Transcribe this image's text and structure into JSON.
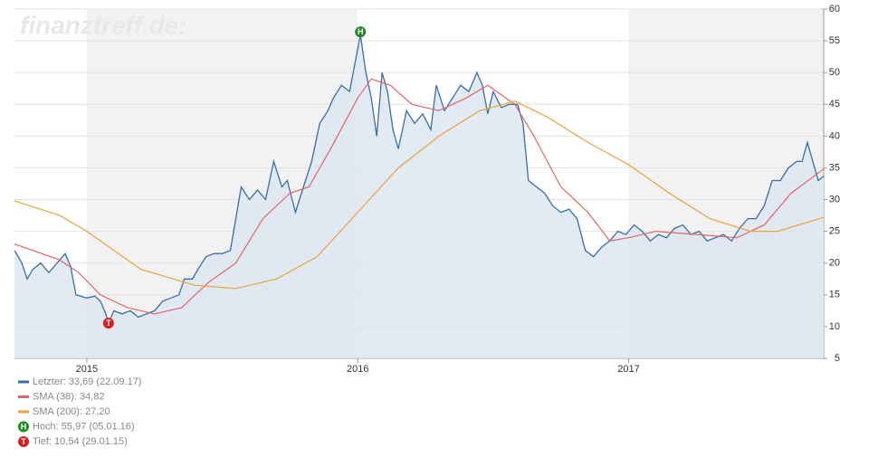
{
  "chart_data": {
    "type": "line",
    "watermark": "finanztreff.de:",
    "xlim": [
      2014.733,
      2017.72
    ],
    "xticks": [
      2015,
      2016,
      2017
    ],
    "ylim": [
      5,
      60
    ],
    "yticks": [
      5,
      10,
      15,
      20,
      25,
      30,
      35,
      40,
      45,
      50,
      55,
      60
    ],
    "grid": true,
    "series": [
      {
        "name": "Letzter: 33,69 (22.09.17)",
        "color": "#3a6ea5",
        "fill": "#dbe5f1",
        "x": [
          2014.733,
          2014.76,
          2014.78,
          2014.8,
          2014.83,
          2014.86,
          2014.89,
          2014.92,
          2014.94,
          2014.96,
          2015.0,
          2015.03,
          2015.05,
          2015.07,
          2015.08,
          2015.1,
          2015.13,
          2015.16,
          2015.19,
          2015.22,
          2015.25,
          2015.28,
          2015.31,
          2015.34,
          2015.36,
          2015.39,
          2015.41,
          2015.44,
          2015.47,
          2015.5,
          2015.53,
          2015.55,
          2015.57,
          2015.6,
          2015.63,
          2015.66,
          2015.69,
          2015.72,
          2015.74,
          2015.77,
          2015.8,
          2015.83,
          2015.86,
          2015.89,
          2015.91,
          2015.94,
          2015.97,
          2016.01,
          2016.03,
          2016.05,
          2016.07,
          2016.09,
          2016.11,
          2016.13,
          2016.15,
          2016.18,
          2016.21,
          2016.24,
          2016.27,
          2016.29,
          2016.32,
          2016.35,
          2016.38,
          2016.41,
          2016.44,
          2016.46,
          2016.48,
          2016.5,
          2016.53,
          2016.56,
          2016.59,
          2016.61,
          2016.63,
          2016.66,
          2016.69,
          2016.72,
          2016.75,
          2016.78,
          2016.81,
          2016.84,
          2016.87,
          2016.9,
          2016.93,
          2016.96,
          2016.99,
          2017.02,
          2017.05,
          2017.08,
          2017.11,
          2017.14,
          2017.17,
          2017.2,
          2017.23,
          2017.26,
          2017.29,
          2017.32,
          2017.35,
          2017.38,
          2017.41,
          2017.44,
          2017.47,
          2017.5,
          2017.53,
          2017.56,
          2017.59,
          2017.62,
          2017.64,
          2017.66,
          2017.68,
          2017.7,
          2017.72
        ],
        "values": [
          22,
          20,
          17.5,
          19,
          20,
          18.5,
          20,
          21.5,
          19.5,
          15,
          14.5,
          14.8,
          14,
          12,
          10.54,
          12.5,
          12,
          12.5,
          11.5,
          12,
          12.5,
          14,
          14.5,
          15,
          17.5,
          17.5,
          19,
          21,
          21.5,
          21.5,
          22,
          27,
          32,
          30,
          31.5,
          30,
          36,
          32,
          33,
          28,
          32,
          36,
          42,
          44,
          46,
          48,
          47,
          55.97,
          50,
          46,
          40,
          50,
          47,
          41,
          38,
          44,
          42,
          43.5,
          41,
          48,
          44,
          46,
          48,
          47,
          50,
          48,
          43.5,
          47,
          44.5,
          45,
          45,
          42,
          33,
          32,
          31,
          29,
          28,
          28.5,
          27,
          22,
          21,
          22.5,
          23.5,
          25,
          24.5,
          26,
          25,
          23.5,
          24.5,
          24,
          25.5,
          26,
          24.5,
          25,
          23.5,
          24,
          24.5,
          23.5,
          25.5,
          27,
          27,
          29,
          33,
          33,
          35,
          36,
          36,
          39,
          36,
          33,
          33.69
        ]
      },
      {
        "name": "SMA (38): 34,82",
        "color": "#e06666",
        "x": [
          2014.733,
          2014.8,
          2014.9,
          2014.97,
          2015.05,
          2015.15,
          2015.25,
          2015.35,
          2015.45,
          2015.55,
          2015.65,
          2015.75,
          2015.82,
          2015.9,
          2016.0,
          2016.05,
          2016.12,
          2016.2,
          2016.3,
          2016.4,
          2016.48,
          2016.58,
          2016.65,
          2016.75,
          2016.85,
          2016.93,
          2017.0,
          2017.1,
          2017.25,
          2017.4,
          2017.5,
          2017.6,
          2017.72
        ],
        "values": [
          23,
          22,
          20.5,
          18.5,
          15,
          13,
          12,
          13,
          17,
          20,
          27,
          31,
          32,
          38,
          46,
          49,
          48,
          45,
          44,
          46,
          48,
          45,
          40,
          32,
          28,
          23.5,
          24,
          25,
          24.5,
          24,
          26,
          31,
          34.82
        ]
      },
      {
        "name": "SMA (200): 27,20",
        "color": "#e8a33d",
        "x": [
          2014.733,
          2014.9,
          2015.0,
          2015.2,
          2015.4,
          2015.55,
          2015.7,
          2015.85,
          2016.0,
          2016.15,
          2016.3,
          2016.45,
          2016.58,
          2016.7,
          2016.85,
          2017.0,
          2017.15,
          2017.3,
          2017.45,
          2017.55,
          2017.72
        ],
        "values": [
          29.8,
          27.5,
          25,
          19,
          16.5,
          16,
          17.5,
          21,
          28,
          35,
          40,
          44,
          45.5,
          43,
          39,
          35.5,
          31,
          27,
          25,
          25,
          27.2
        ]
      }
    ],
    "markers": [
      {
        "label": "H",
        "name": "Hoch: 55,97 (05.01.16)",
        "color": "#1e8a1e",
        "x": 2016.01,
        "value": 55.97
      },
      {
        "label": "T",
        "name": "Tief: 10,54 (29.01.15)",
        "color": "#d62020",
        "x": 2015.08,
        "value": 10.54
      }
    ]
  }
}
